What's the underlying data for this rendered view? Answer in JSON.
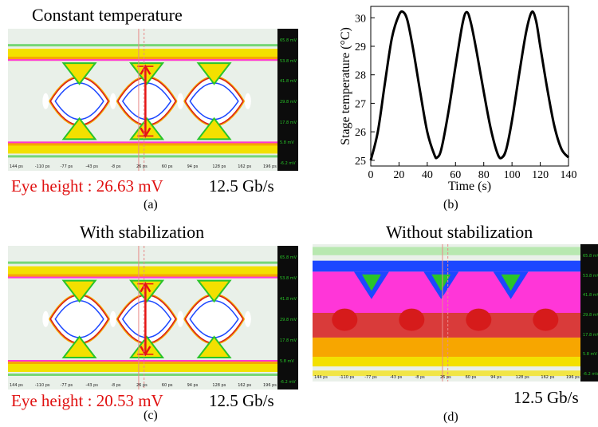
{
  "panels": {
    "a": {
      "title": "Constant temperature",
      "eye_height": "Eye height : 26.63 mV",
      "rate": "12.5 Gb/s",
      "label": "(a)"
    },
    "b": {
      "label": "(b)"
    },
    "c": {
      "title": "With stabilization",
      "eye_height": "Eye height : 20.53 mV",
      "rate": "12.5 Gb/s",
      "label": "(c)"
    },
    "d": {
      "title": "Without stabilization",
      "rate": "12.5 Gb/s",
      "label": "(d)"
    }
  },
  "scope": {
    "y_ticks": [
      "65.8 mV",
      "53.8 mV",
      "41.8 mV",
      "29.8 mV",
      "17.8 mV",
      "5.8 mV",
      "-6.2 mV"
    ],
    "x_ticks": [
      "144 ps",
      "-110 ps",
      "-77 ps",
      "-43 ps",
      "-8 ps",
      "26 ps",
      "60 ps",
      "94 ps",
      "128 ps",
      "162 ps",
      "196 ps"
    ],
    "colors": {
      "background": "#e9f0e9",
      "outer_yellow": "#f3e000",
      "orange": "#f7a600",
      "red": "#d61b1b",
      "magenta": "#ff36d8",
      "blue": "#1c47ff",
      "green": "#29c429",
      "eye_marker": "#e51515"
    }
  },
  "chart_data": {
    "type": "line",
    "x": [
      0,
      5,
      10,
      15,
      20,
      23,
      26,
      30,
      35,
      40,
      45,
      47,
      50,
      55,
      60,
      65,
      68,
      71,
      75,
      80,
      85,
      90,
      93,
      96,
      100,
      105,
      110,
      114,
      117,
      120,
      125,
      130,
      135,
      140
    ],
    "y": [
      25.0,
      26.0,
      27.7,
      29.3,
      30.1,
      30.2,
      29.9,
      28.9,
      27.4,
      26.0,
      25.2,
      25.1,
      25.4,
      26.7,
      28.3,
      29.8,
      30.2,
      29.8,
      28.8,
      27.4,
      26.1,
      25.2,
      25.1,
      25.4,
      26.4,
      28.0,
      29.5,
      30.2,
      29.9,
      29.0,
      27.5,
      26.2,
      25.4,
      25.1
    ],
    "xlabel": "Time (s)",
    "ylabel": "Stage temperature (°C)",
    "xlim": [
      0,
      140
    ],
    "ylim": [
      24.8,
      30.4
    ],
    "x_ticks": [
      0,
      20,
      40,
      60,
      80,
      100,
      120,
      140
    ],
    "y_ticks": [
      25,
      26,
      27,
      28,
      29,
      30
    ],
    "grid": false,
    "line_color": "#000000"
  }
}
